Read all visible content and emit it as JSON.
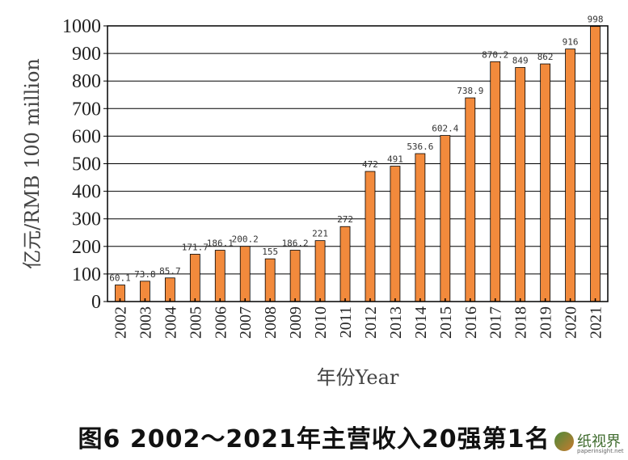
{
  "chart_data": {
    "type": "bar",
    "categories": [
      "2002",
      "2003",
      "2004",
      "2005",
      "2006",
      "2007",
      "2008",
      "2009",
      "2010",
      "2011",
      "2012",
      "2013",
      "2014",
      "2015",
      "2016",
      "2017",
      "2018",
      "2019",
      "2020",
      "2021"
    ],
    "values": [
      60.1,
      73.8,
      85.7,
      171.7,
      186.1,
      200.2,
      155,
      186.2,
      221,
      272,
      472,
      491,
      536.6,
      602.4,
      738.9,
      870.2,
      849,
      862,
      916,
      998
    ],
    "value_labels": [
      "60.1",
      "73.8",
      "85.7",
      "171.7",
      "186.1",
      "200.2",
      "155",
      "186.2",
      "221",
      "272",
      "472",
      "491",
      "536.6",
      "602.4",
      "738.9",
      "870.2",
      "849",
      "862",
      "916",
      "998"
    ],
    "yticks": [
      "0",
      "100",
      "200",
      "300",
      "400",
      "500",
      "600",
      "700",
      "800",
      "900",
      "1000"
    ],
    "ylim": [
      0,
      1000
    ],
    "ylabel": "亿元/RMB 100 million",
    "xlabel": "年份Year",
    "grid": "horizontal",
    "bar_color": "#f28a3c",
    "bar_edge_color": "#000000"
  },
  "caption": "图6   2002～2021年主营收入20强第1名",
  "logo": {
    "text": "纸视界",
    "subtext": "paperinsight.net"
  }
}
